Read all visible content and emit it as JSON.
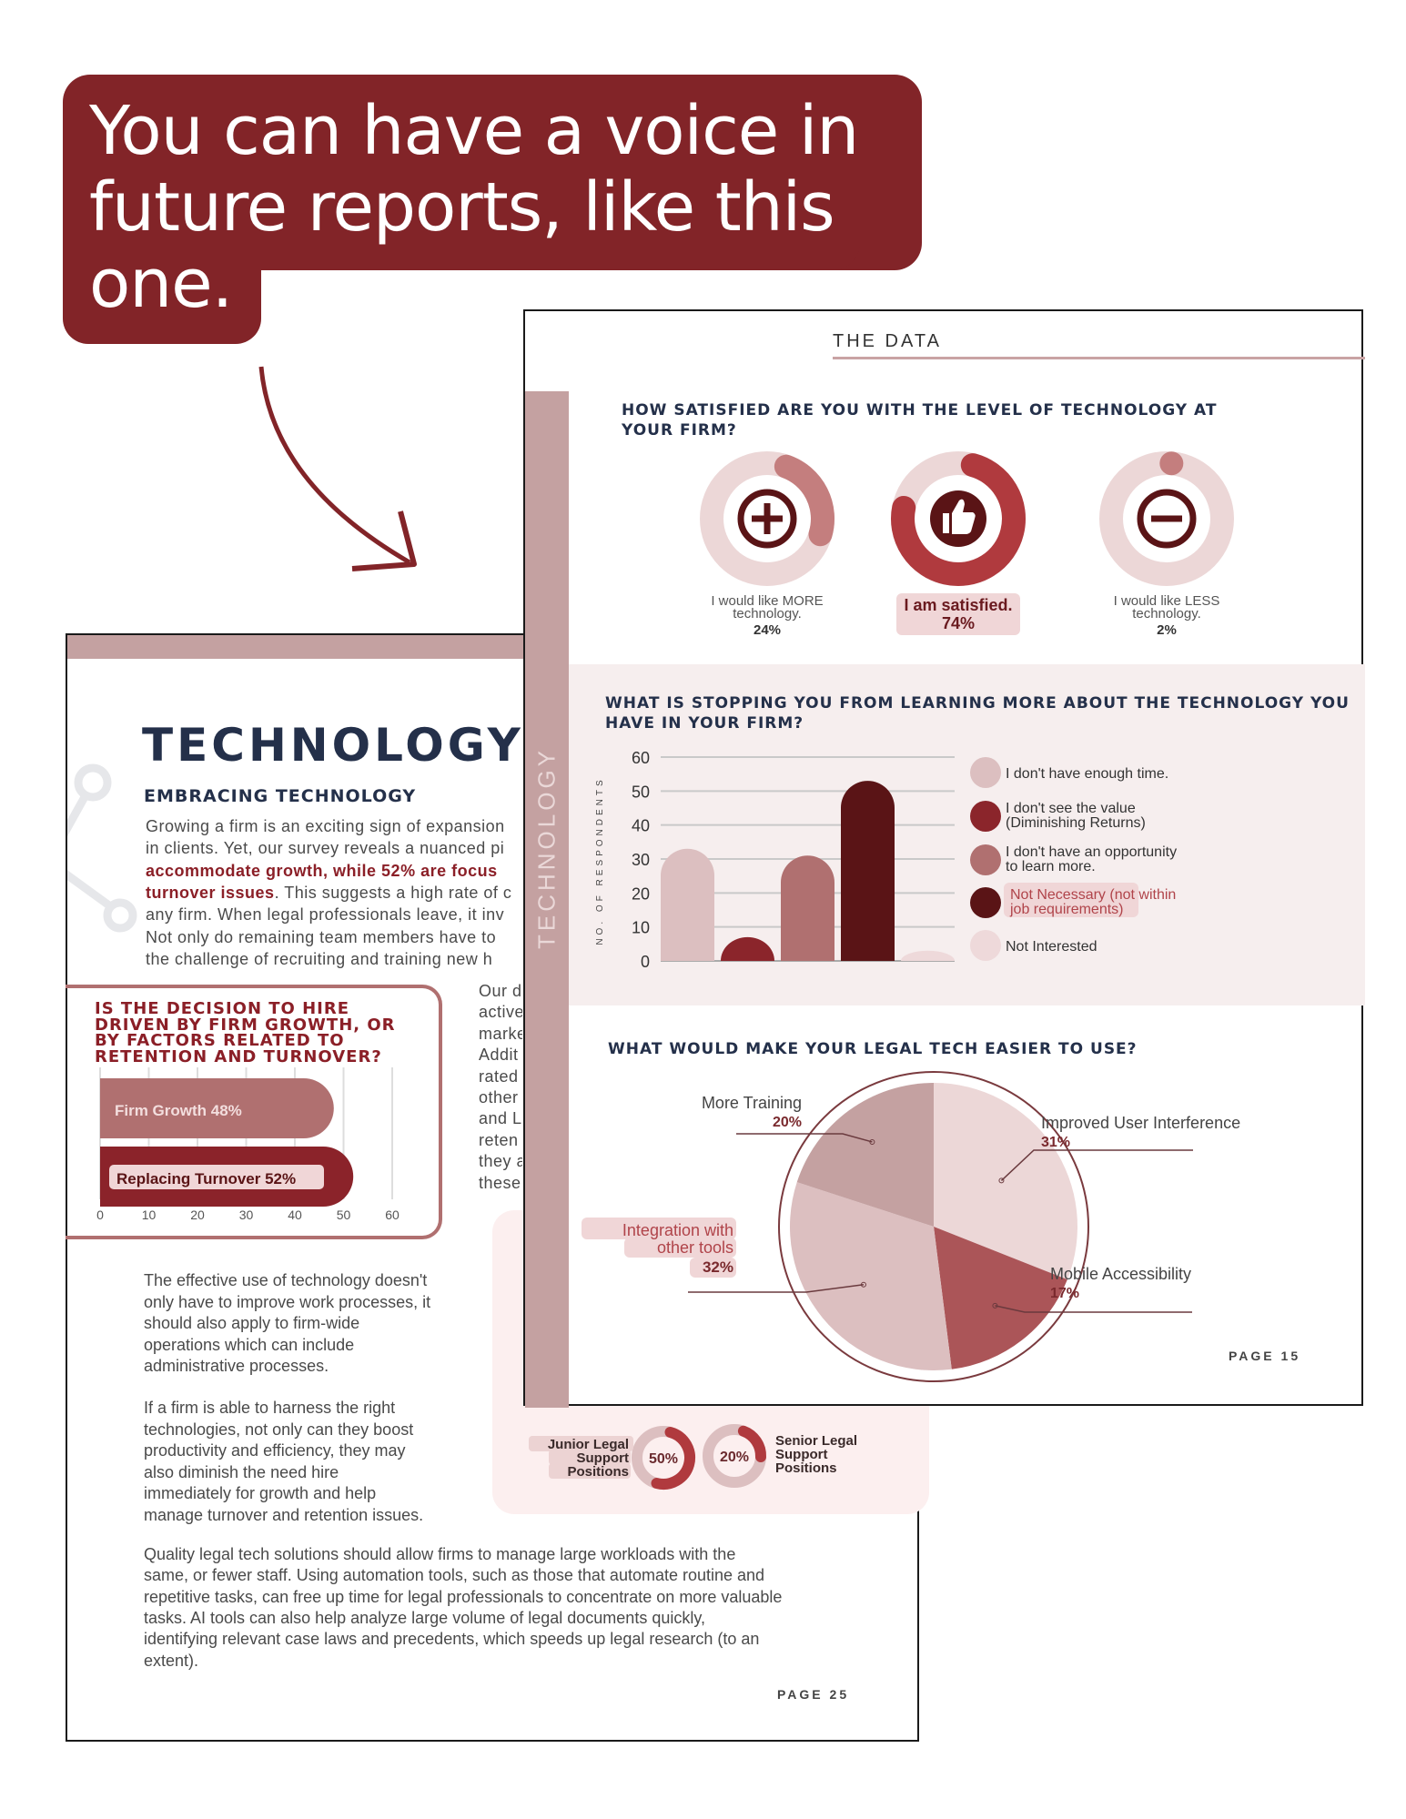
{
  "callout": {
    "lines": [
      "You can have a voice in",
      "future reports, like this",
      "one."
    ],
    "color": "#822428"
  },
  "back_page": {
    "title": "TECHNOLOGY;R",
    "subtitle": "EMBRACING TECHNOLOGY",
    "intro_lines": [
      {
        "pre": "Growing a firm is an exciting sign of expansion",
        "bold": "",
        "post": ""
      },
      {
        "pre": "in clients. Yet, our survey reveals a nuanced pi",
        "bold": "",
        "post": ""
      },
      {
        "pre": "",
        "bold": "accommodate growth, while 52% are focus",
        "post": ""
      },
      {
        "pre": "",
        "bold": "turnover issues",
        "post": ". This suggests a high rate of c"
      },
      {
        "pre": "any firm. When legal professionals leave, it inv",
        "bold": "",
        "post": ""
      },
      {
        "pre": "Not only do remaining team members have to",
        "bold": "",
        "post": ""
      },
      {
        "pre": "the challenge of recruiting and training new h",
        "bold": "",
        "post": ""
      }
    ],
    "card": {
      "title_lines": [
        "IS THE DECISION TO HIRE",
        "DRIVEN BY FIRM GROWTH, OR",
        "BY FACTORS RELATED TO",
        "RETENTION AND TURNOVER?"
      ]
    },
    "side_column": [
      "Our d",
      "active",
      "marke",
      "Addit",
      "rated",
      "other",
      "and L",
      "reten",
      "they a",
      "these"
    ],
    "para2": [
      "The effective use of technology doesn't",
      "only have to improve work processes, it",
      "should also apply to firm-wide",
      "operations which can include",
      "administrative processes."
    ],
    "para3": [
      "If a firm is able to harness the right",
      "technologies, not only can they boost",
      "productivity and efficiency, they may",
      "also diminish the need hire",
      "immediately for growth and help",
      "manage turnover and retention issues."
    ],
    "para4": [
      "Quality legal tech solutions should allow firms to manage large workloads with the",
      "same, or fewer staff. Using automation tools, such as those that automate routine and",
      "repetitive tasks, can free up time for legal professionals to concentrate on more valuable",
      "tasks. AI tools can also help analyze large volume of legal documents quickly,",
      "identifying relevant case laws and precedents, which speeds up legal research (to an",
      "extent)."
    ],
    "positions": {
      "junior": {
        "label_lines": [
          "Junior Legal",
          "Support",
          "Positions"
        ],
        "value_label": "50%",
        "value": 50
      },
      "senior": {
        "label_lines": [
          "Senior Legal",
          "Support",
          "Positions"
        ],
        "value_label": "20%",
        "value": 20
      }
    },
    "page_label": "PAGE 25"
  },
  "front_page": {
    "section": "THE DATA",
    "side_label": "TECHNOLOGY",
    "page_label": "PAGE 15"
  },
  "chart_data": [
    {
      "type": "bar",
      "orientation": "horizontal",
      "title": "IS THE DECISION TO HIRE DRIVEN BY FIRM GROWTH, OR BY FACTORS RELATED TO RETENTION AND TURNOVER?",
      "categories": [
        "Firm Growth 48%",
        "Replacing Turnover 52%"
      ],
      "values": [
        48,
        52
      ],
      "colors": [
        "#b07070",
        "#8b232a"
      ],
      "xlim": [
        0,
        60
      ],
      "xticks": [
        "0",
        "10",
        "20",
        "30",
        "40",
        "50",
        "60"
      ],
      "grid": true
    },
    {
      "type": "donut",
      "title": "HOW SATISFIED ARE YOU WITH THE LEVEL OF TECHNOLOGY AT YOUR FIRM?",
      "items": [
        {
          "label_lines": [
            "I would like MORE",
            "technology."
          ],
          "value_label": "24%",
          "value": 24,
          "icon": "plus-circle-icon",
          "color": "#c47e7e"
        },
        {
          "label_lines": [
            "I am satisfied."
          ],
          "value_label": "74%",
          "value": 74,
          "icon": "thumbs-up-icon",
          "color": "#b03a3e",
          "highlight": true
        },
        {
          "label_lines": [
            "I would like LESS",
            "technology."
          ],
          "value_label": "2%",
          "value": 2,
          "icon": "minus-circle-icon",
          "color": "#c47e7e"
        }
      ]
    },
    {
      "type": "bar",
      "title": "WHAT IS STOPPING YOU FROM LEARNING MORE ABOUT THE TECHNOLOGY YOU HAVE IN YOUR FIRM?",
      "ylabel": "NO. OF RESPONDENTS",
      "ylim": [
        0,
        60
      ],
      "yticks": [
        "0",
        "10",
        "20",
        "30",
        "40",
        "50",
        "60"
      ],
      "grid": true,
      "legend": "right",
      "series": [
        {
          "name": "I don't have enough time.",
          "value": 33,
          "color": "#dcbfc0"
        },
        {
          "name": "I don't see the value (Diminishing Returns)",
          "value": 7,
          "color": "#8b252b"
        },
        {
          "name": "I don't have an opportunity to learn more.",
          "value": 31,
          "color": "#b07070"
        },
        {
          "name": "Not Necessary (not within job requirements)",
          "value": 53,
          "color": "#5a1416",
          "highlight": true
        },
        {
          "name": "Not Interested",
          "value": 3,
          "color": "#eed9da"
        }
      ],
      "legend_lines": [
        [
          "I don't have enough time."
        ],
        [
          "I don't see the value",
          "(Diminishing Returns)"
        ],
        [
          "I don't have an opportunity",
          "to learn more."
        ],
        [
          "Not Necessary (not within",
          "job requirements)"
        ],
        [
          "Not Interested"
        ]
      ]
    },
    {
      "type": "pie",
      "title": "WHAT WOULD MAKE YOUR LEGAL TECH EASIER TO USE?",
      "slices": [
        {
          "label": "Improved User Interference",
          "value_label": "31%",
          "value": 31,
          "color": "#ecd7d7"
        },
        {
          "label": "Mobile Accessibility",
          "value_label": "17%",
          "value": 17,
          "color": "#ab5558"
        },
        {
          "label": "Integration with other tools",
          "label_lines": [
            "Integration with",
            "other tools"
          ],
          "value_label": "32%",
          "value": 32,
          "color": "#dcbfc0",
          "highlight": true
        },
        {
          "label": "More Training",
          "value_label": "20%",
          "value": 20,
          "color": "#c4a1a1"
        }
      ]
    }
  ]
}
